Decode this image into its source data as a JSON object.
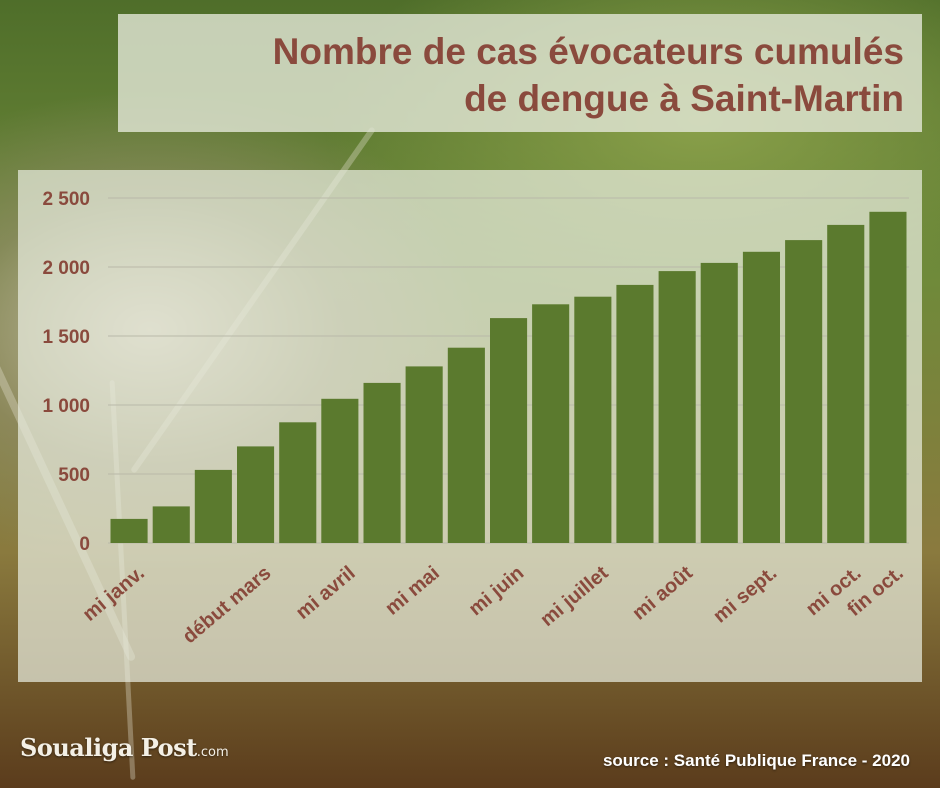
{
  "title_line1": "Nombre de cas évocateurs cumulés",
  "title_line2": "de dengue à Saint-Martin",
  "brand": {
    "name": "Soualiga Post",
    "suffix": ".com"
  },
  "source": "source : Santé Publique France -  2020",
  "colors": {
    "bar": "#5b7a2e",
    "text": "#8a4a3d",
    "grid": "#b9b9a9"
  },
  "chart_data": {
    "type": "bar",
    "title": "Nombre de cas évocateurs cumulés de dengue à Saint-Martin",
    "xlabel": "",
    "ylabel": "",
    "ylim": [
      0,
      2500
    ],
    "yticks": [
      0,
      500,
      1000,
      1500,
      2000,
      2500
    ],
    "ytick_labels": [
      "0",
      "500",
      "1 000",
      "1 500",
      "2 000",
      "2 500"
    ],
    "grid": true,
    "values": [
      175,
      265,
      530,
      700,
      875,
      1045,
      1160,
      1280,
      1415,
      1630,
      1730,
      1785,
      1870,
      1970,
      2030,
      2110,
      2195,
      2305,
      2400
    ],
    "xtick_labels": [
      {
        "bar": 0,
        "label": "mi janv."
      },
      {
        "bar": 3,
        "label": "début mars"
      },
      {
        "bar": 5,
        "label": "mi avril"
      },
      {
        "bar": 7,
        "label": "mi mai"
      },
      {
        "bar": 9,
        "label": "mi juin"
      },
      {
        "bar": 11,
        "label": "mi juillet"
      },
      {
        "bar": 13,
        "label": "mi août"
      },
      {
        "bar": 15,
        "label": "mi sept."
      },
      {
        "bar": 17,
        "label": "mi oct."
      },
      {
        "bar": 18,
        "label": "fin oct."
      }
    ]
  }
}
